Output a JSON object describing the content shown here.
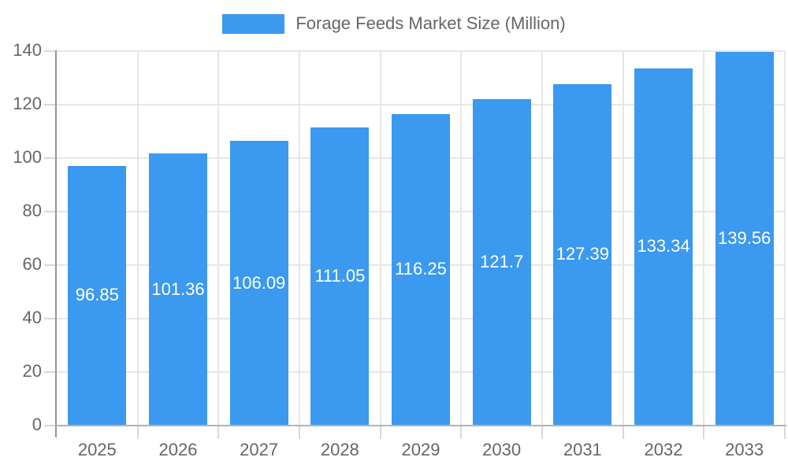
{
  "chart_data": {
    "type": "bar",
    "title": "Forage Feeds Market Size (Million)",
    "categories": [
      "2025",
      "2026",
      "2027",
      "2028",
      "2029",
      "2030",
      "2031",
      "2032",
      "2033"
    ],
    "values": [
      96.85,
      101.36,
      106.09,
      111.05,
      116.25,
      121.7,
      127.39,
      133.34,
      139.56
    ],
    "value_labels": [
      "96.85",
      "101.36",
      "106.09",
      "111.05",
      "116.25",
      "121.7",
      "127.39",
      "133.34",
      "139.56"
    ],
    "xlabel": "",
    "ylabel": "",
    "ylim": [
      0,
      140
    ],
    "yticks": [
      0,
      20,
      40,
      60,
      80,
      100,
      120,
      140
    ],
    "grid": true,
    "legend": {
      "position": "top",
      "label": "Forage Feeds Market Size (Million)"
    }
  },
  "colors": {
    "bar": "#3b99ef",
    "grid": "#e6e6e6",
    "axis_y": "#949494",
    "axis_x": "#b3b3b3",
    "tick": "#d8d8d8",
    "text": "#666666",
    "value_text": "#ffffff",
    "background": "#ffffff"
  }
}
